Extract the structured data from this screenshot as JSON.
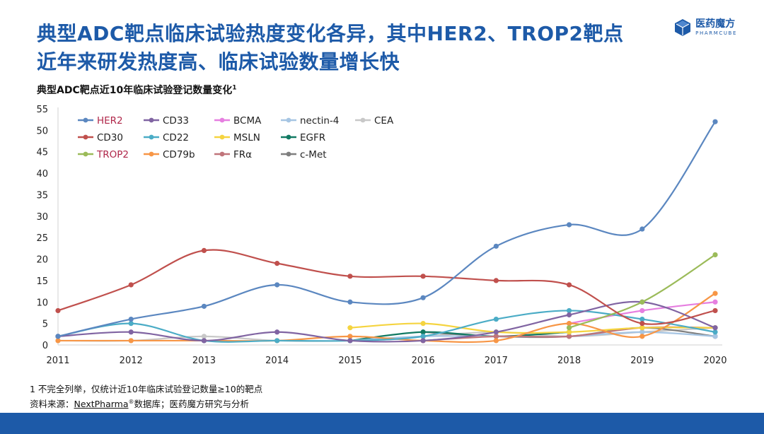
{
  "header": {
    "title_line1": "典型ADC靶点临床试验热度变化各异，其中HER2、TROP2靶点",
    "title_line2": "近年来研发热度高、临床试验数量增长快",
    "logo_cn": "医药魔方",
    "logo_en": "PHARMCUBE",
    "logo_color": "#1d5aa8"
  },
  "chart_title": "典型ADC靶点近10年临床试验登记数量变化",
  "chart_title_sup": "1",
  "chart_data": {
    "type": "line",
    "title": "典型ADC靶点近10年临床试验登记数量变化",
    "xlabel": "",
    "ylabel": "",
    "x": [
      2011,
      2012,
      2013,
      2014,
      2015,
      2016,
      2017,
      2018,
      2019,
      2020
    ],
    "ylim": [
      0,
      55
    ],
    "yticks": [
      0,
      5,
      10,
      15,
      20,
      25,
      30,
      35,
      40,
      45,
      50,
      55
    ],
    "grid": false,
    "legend_position": "top-left",
    "series": [
      {
        "name": "HER2",
        "color": "#5b87c0",
        "label_color": "#b0274a",
        "x": [
          2011,
          2012,
          2013,
          2014,
          2015,
          2016,
          2017,
          2018,
          2019,
          2020
        ],
        "values": [
          2,
          6,
          9,
          14,
          10,
          11,
          23,
          28,
          27,
          52
        ]
      },
      {
        "name": "CD30",
        "color": "#c0504d",
        "label_color": "#222222",
        "x": [
          2011,
          2012,
          2013,
          2014,
          2015,
          2016,
          2017,
          2018,
          2019,
          2020
        ],
        "values": [
          8,
          14,
          22,
          19,
          16,
          16,
          15,
          14,
          5,
          8
        ]
      },
      {
        "name": "TROP2",
        "color": "#9bbb59",
        "label_color": "#b0274a",
        "x": [
          2018,
          2019,
          2020
        ],
        "values": [
          4,
          10,
          21
        ]
      },
      {
        "name": "CD33",
        "color": "#8064a2",
        "label_color": "#222222",
        "x": [
          2011,
          2012,
          2013,
          2014,
          2015,
          2016,
          2017,
          2018,
          2019,
          2020
        ],
        "values": [
          2,
          3,
          1,
          3,
          1,
          1,
          3,
          7,
          10,
          4
        ]
      },
      {
        "name": "CD22",
        "color": "#4bacc6",
        "label_color": "#222222",
        "x": [
          2011,
          2012,
          2013,
          2014,
          2015,
          2016,
          2017,
          2018,
          2019,
          2020
        ],
        "values": [
          2,
          5,
          1,
          1,
          1,
          2,
          6,
          8,
          6,
          3
        ]
      },
      {
        "name": "CD79b",
        "color": "#f79646",
        "label_color": "#222222",
        "x": [
          2011,
          2012,
          2013,
          2014,
          2015,
          2016,
          2017,
          2018,
          2019,
          2020
        ],
        "values": [
          1,
          1,
          1,
          1,
          2,
          1,
          1,
          5,
          2,
          12
        ]
      },
      {
        "name": "BCMA",
        "color": "#e67fe0",
        "label_color": "#222222",
        "x": [
          2018,
          2019,
          2020
        ],
        "values": [
          5,
          8,
          10
        ]
      },
      {
        "name": "MSLN",
        "color": "#f5d440",
        "label_color": "#222222",
        "x": [
          2015,
          2016,
          2017,
          2018,
          2019,
          2020
        ],
        "values": [
          4,
          5,
          3,
          3,
          4,
          4
        ]
      },
      {
        "name": "FRα",
        "color": "#c0747a",
        "label_color": "#222222",
        "x": [
          2016,
          2017,
          2018,
          2019,
          2020
        ],
        "values": [
          1,
          2,
          2,
          4,
          4
        ]
      },
      {
        "name": "nectin-4",
        "color": "#a6c5e3",
        "label_color": "#222222",
        "x": [
          2015,
          2016,
          2017,
          2018,
          2019,
          2020
        ],
        "values": [
          1,
          2,
          2,
          2,
          3,
          2
        ]
      },
      {
        "name": "EGFR",
        "color": "#127a63",
        "label_color": "#222222",
        "x": [
          2015,
          2016,
          2017,
          2018
        ],
        "values": [
          1,
          3,
          2,
          3
        ]
      },
      {
        "name": "c-Met",
        "color": "#7f7f7f",
        "label_color": "#222222",
        "x": [
          2016,
          2017,
          2018,
          2019,
          2020
        ],
        "values": [
          3,
          2,
          2,
          4,
          2
        ]
      },
      {
        "name": "CEA",
        "color": "#c8c8c8",
        "label_color": "#222222",
        "x": [
          2011,
          2012,
          2013,
          2014,
          2015,
          2016,
          2017,
          2018,
          2019,
          2020
        ],
        "values": [
          1,
          1,
          2,
          1,
          1,
          2,
          3,
          2,
          3,
          4
        ]
      }
    ]
  },
  "notes": {
    "line1": "1 不完全列举，仅统计近10年临床试验登记数量≥10的靶点",
    "line2_prefix": "资料来源：",
    "line2_link": "NextPharma",
    "line2_reg": "®",
    "line2_suffix": "数据库；医药魔方研究与分析"
  }
}
